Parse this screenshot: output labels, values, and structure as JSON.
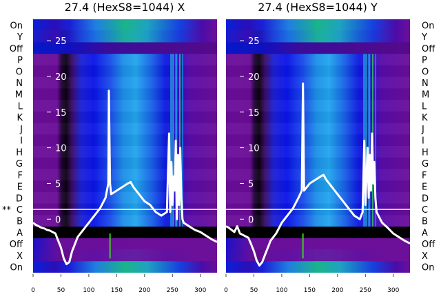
{
  "chart_data": [
    {
      "type": "heatmap",
      "title": "27.4 (HexS8=1044) X",
      "xlim": [
        0,
        330
      ],
      "xticks": [
        0,
        50,
        100,
        150,
        200,
        250,
        300
      ],
      "ylim": [
        -7.5,
        28
      ],
      "yticks": [
        0,
        5,
        10,
        15,
        20,
        25
      ],
      "row_labels": [
        "On",
        "X",
        "Off",
        "A",
        "B",
        "C",
        "D",
        "E",
        "F",
        "G",
        "H",
        "I",
        "J",
        "K",
        "L",
        "M",
        "N",
        "O",
        "P",
        "Off",
        "Y",
        "On"
      ],
      "marker_label": "**",
      "series": [
        {
          "x": [
            0,
            5,
            10,
            15,
            20,
            25,
            30,
            35,
            40,
            45,
            50,
            55,
            60,
            65,
            70,
            75,
            80,
            90,
            100,
            110,
            120,
            130,
            135,
            136,
            138,
            140,
            150,
            160,
            170,
            175,
            180,
            190,
            200,
            210,
            220,
            230,
            240,
            244,
            246,
            248,
            250,
            252,
            254,
            256,
            258,
            260,
            262,
            264,
            266,
            268,
            270,
            280,
            290,
            300,
            310,
            320,
            330
          ],
          "y": [
            -0.5,
            -0.8,
            -1,
            -1.2,
            -1.3,
            -1.5,
            -1.6,
            -1.8,
            -2,
            -3,
            -4,
            -5.5,
            -6.3,
            -6,
            -4.5,
            -3.5,
            -2.5,
            -1.5,
            -0.5,
            0.5,
            1.5,
            3,
            5,
            18,
            5,
            3.5,
            4,
            4.5,
            5,
            5.2,
            4.5,
            3.5,
            2.5,
            2,
            1,
            0.5,
            1,
            12,
            1,
            8,
            2,
            6,
            4,
            11,
            0,
            9,
            2,
            10,
            3,
            0,
            -0.5,
            -1,
            -1.5,
            -1.8,
            -2.3,
            -2.8,
            -3.2
          ]
        }
      ]
    },
    {
      "type": "heatmap",
      "title": "27.4 (HexS8=1044) Y",
      "xlim": [
        0,
        330
      ],
      "xticks": [
        0,
        50,
        100,
        150,
        200,
        250,
        300
      ],
      "ylim": [
        -7.5,
        28
      ],
      "yticks": [
        0,
        5,
        10,
        15,
        20,
        25
      ],
      "row_labels": [
        "On",
        "X",
        "Off",
        "A",
        "B",
        "C",
        "D",
        "E",
        "F",
        "G",
        "H",
        "I",
        "J",
        "K",
        "L",
        "M",
        "N",
        "O",
        "P",
        "Off",
        "Y",
        "On"
      ],
      "series": [
        {
          "x": [
            0,
            5,
            10,
            15,
            20,
            25,
            30,
            35,
            40,
            45,
            50,
            55,
            60,
            65,
            70,
            75,
            80,
            90,
            100,
            110,
            120,
            130,
            136,
            138,
            140,
            150,
            160,
            170,
            175,
            180,
            190,
            200,
            210,
            220,
            230,
            240,
            245,
            248,
            250,
            254,
            256,
            258,
            260,
            262,
            264,
            266,
            268,
            270,
            280,
            290,
            300,
            310,
            320,
            330
          ],
          "y": [
            -1,
            -1.2,
            -1.5,
            -1.8,
            -1,
            -2,
            -2.2,
            -2.4,
            -2.6,
            -3.5,
            -4.5,
            -5.8,
            -6.5,
            -6,
            -5,
            -4,
            -3,
            -2,
            -0.5,
            0.5,
            1.5,
            3,
            4,
            19,
            4,
            5,
            5.5,
            6,
            6.2,
            5.5,
            4.5,
            3.5,
            2.5,
            1.5,
            0.5,
            0,
            1,
            11,
            2,
            10,
            3,
            9,
            4,
            12,
            5,
            8,
            3,
            1,
            -0.5,
            -1.2,
            -2,
            -2.5,
            -3,
            -3.4
          ]
        }
      ]
    }
  ]
}
